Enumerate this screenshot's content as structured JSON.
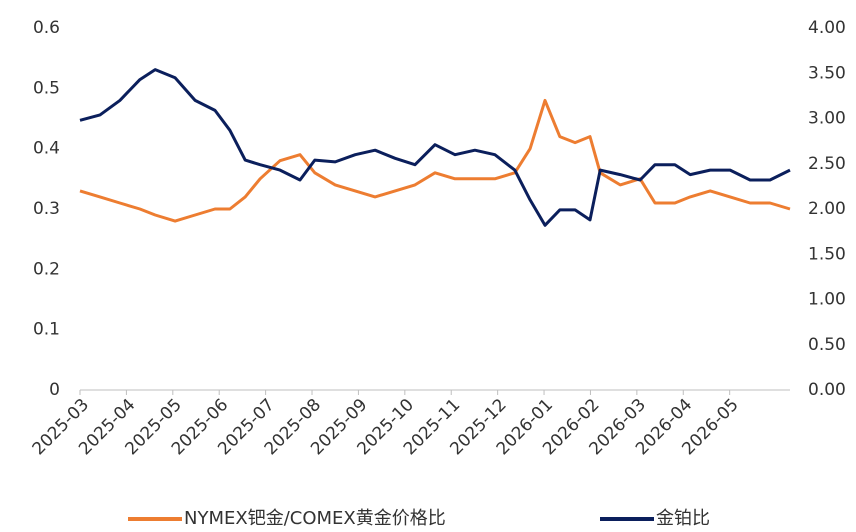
{
  "chart_data": {
    "type": "line",
    "x": [
      0,
      0.43,
      0.86,
      1.29,
      1.62,
      2.05,
      2.48,
      2.91,
      3.23,
      3.56,
      3.88,
      4.31,
      4.74,
      5.06,
      5.5,
      5.93,
      6.36,
      6.79,
      7.22,
      7.65,
      8.08,
      8.51,
      8.94,
      9.37,
      9.7,
      10.02,
      10.34,
      10.67,
      10.99,
      11.21,
      11.64,
      12.07,
      12.39,
      12.82,
      13.15,
      13.58,
      14.01,
      14.44,
      14.87,
      15.3
    ],
    "xlim": [
      0,
      15.3
    ],
    "xticks": [
      {
        "value": 0,
        "label": "2025-03"
      },
      {
        "value": 1,
        "label": "2025-04"
      },
      {
        "value": 2,
        "label": "2025-05"
      },
      {
        "value": 3,
        "label": "2025-06"
      },
      {
        "value": 4,
        "label": "2025-07"
      },
      {
        "value": 5,
        "label": "2025-08"
      },
      {
        "value": 6,
        "label": "2025-09"
      },
      {
        "value": 7,
        "label": "2025-10"
      },
      {
        "value": 8,
        "label": "2025-11"
      },
      {
        "value": 9,
        "label": "2025-12"
      },
      {
        "value": 10,
        "label": "2026-01"
      },
      {
        "value": 11,
        "label": "2026-02"
      },
      {
        "value": 12,
        "label": "2026-03"
      },
      {
        "value": 13,
        "label": "2026-04"
      },
      {
        "value": 14,
        "label": "2026-05"
      }
    ],
    "ylim": [
      0,
      0.6
    ],
    "yticks": [
      0,
      0.1,
      0.2,
      0.3,
      0.4,
      0.5,
      0.6
    ],
    "y2lim": [
      0,
      4
    ],
    "y2ticks": [
      {
        "value": 0,
        "label": "0.00"
      },
      {
        "value": 0.5,
        "label": "0.50"
      },
      {
        "value": 1,
        "label": "1.00"
      },
      {
        "value": 1.5,
        "label": "1.50"
      },
      {
        "value": 2,
        "label": "2.00"
      },
      {
        "value": 2.5,
        "label": "2.50"
      },
      {
        "value": 3,
        "label": "3.00"
      },
      {
        "value": 3.5,
        "label": "3.50"
      },
      {
        "value": 4,
        "label": "4.00"
      }
    ],
    "series": [
      {
        "name": "NYMEX钯金/COMEX黄金价格比",
        "color": "#ed7d31",
        "values": [
          0.33,
          0.32,
          0.31,
          0.3,
          0.29,
          0.28,
          0.29,
          0.3,
          0.3,
          0.32,
          0.35,
          0.38,
          0.39,
          0.36,
          0.34,
          0.33,
          0.32,
          0.33,
          0.34,
          0.36,
          0.35,
          0.35,
          0.35,
          0.36,
          0.4,
          0.48,
          0.42,
          0.41,
          0.42,
          0.36,
          0.34,
          0.35,
          0.31,
          0.31,
          0.32,
          0.33,
          0.32,
          0.31,
          0.31,
          0.3
        ]
      },
      {
        "name": "金铂比",
        "color": "#0b1f5c",
        "axis": "y2",
        "values": [
          2.98,
          3.04,
          3.2,
          3.43,
          3.54,
          3.45,
          3.2,
          3.09,
          2.87,
          2.54,
          2.49,
          2.43,
          2.32,
          2.54,
          2.52,
          2.6,
          2.65,
          2.56,
          2.49,
          2.71,
          2.6,
          2.65,
          2.6,
          2.43,
          2.1,
          1.82,
          1.99,
          1.99,
          1.88,
          2.43,
          2.38,
          2.32,
          2.49,
          2.49,
          2.38,
          2.43,
          2.43,
          2.32,
          2.32,
          2.43
        ]
      }
    ]
  }
}
